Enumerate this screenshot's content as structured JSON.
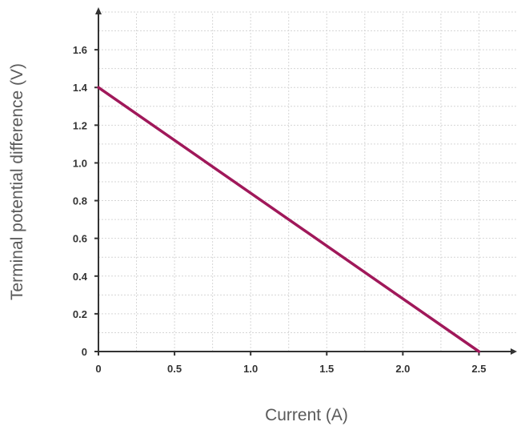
{
  "chart_data": {
    "type": "line",
    "title": "",
    "xlabel": "Current (A)",
    "ylabel": "Terminal potential difference (V)",
    "xlim": [
      0,
      2.75
    ],
    "ylim": [
      0,
      1.8
    ],
    "x_ticks": [
      0,
      0.5,
      1.0,
      1.5,
      2.0,
      2.5
    ],
    "x_tick_labels": [
      "0",
      "0.5",
      "1.0",
      "1.5",
      "2.0",
      "2.5"
    ],
    "y_ticks": [
      0,
      0.2,
      0.4,
      0.6,
      0.8,
      1.0,
      1.2,
      1.4,
      1.6
    ],
    "y_tick_labels": [
      "0",
      "0.2",
      "0.4",
      "0.6",
      "0.8",
      "1.0",
      "1.2",
      "1.4",
      "1.6"
    ],
    "grid": true,
    "grid_minor_x": 0.25,
    "grid_minor_y": 0.1,
    "series": [
      {
        "x": [
          0,
          2.5
        ],
        "y": [
          1.4,
          0
        ],
        "color": "#a0185a"
      }
    ],
    "colors": {
      "line": "#a0185a",
      "axis": "#333333",
      "grid": "#d6d6d6"
    }
  }
}
